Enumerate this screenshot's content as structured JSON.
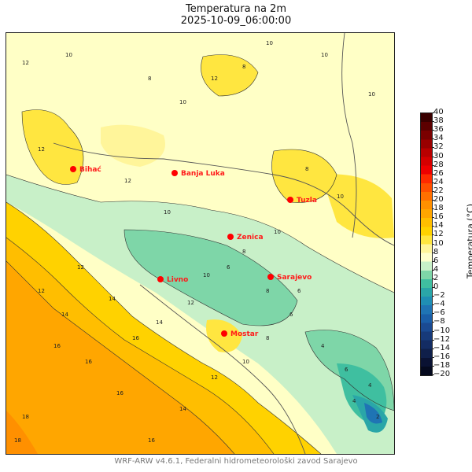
{
  "title": {
    "line1": "Temperatura na 2m",
    "line2": "2025-10-09_06:00:00"
  },
  "colorbar": {
    "label": "Temperatura (°C)",
    "ticks": [
      "40",
      "38",
      "36",
      "34",
      "32",
      "30",
      "28",
      "26",
      "24",
      "22",
      "20",
      "18",
      "16",
      "14",
      "12",
      "10",
      "8",
      "6",
      "4",
      "2",
      "0",
      "−2",
      "−4",
      "−6",
      "−8",
      "−10",
      "−12",
      "−14",
      "−16",
      "−18",
      "−20"
    ],
    "colors": [
      "#3a0000",
      "#5c0000",
      "#7a0000",
      "#990000",
      "#b80000",
      "#d40000",
      "#ee0000",
      "#ff2a00",
      "#ff5000",
      "#ff7000",
      "#ff9000",
      "#ffa600",
      "#ffbe00",
      "#ffd200",
      "#ffe640",
      "#fff59a",
      "#ffffcc",
      "#c8f0c8",
      "#7ed6a8",
      "#3fbfa0",
      "#2aa6a8",
      "#1f8fb4",
      "#1f74b4",
      "#1a5ea8",
      "#1a4a92",
      "#173a7a",
      "#132c63",
      "#0f1f4a",
      "#0a1233",
      "#050a1f"
    ]
  },
  "cities": [
    {
      "name": "Bihać"
    },
    {
      "name": "Banja Luka"
    },
    {
      "name": "Tuzla"
    },
    {
      "name": "Zenica"
    },
    {
      "name": "Sarajevo"
    },
    {
      "name": "Livno"
    },
    {
      "name": "Mostar"
    }
  ],
  "contour_labels": [
    "12",
    "10",
    "8",
    "10",
    "8",
    "10",
    "12",
    "10",
    "12",
    "10",
    "12",
    "10",
    "8",
    "10",
    "6",
    "8",
    "6",
    "4",
    "6",
    "4",
    "12",
    "14",
    "16",
    "16",
    "18",
    "16",
    "14",
    "12",
    "10",
    "8",
    "6",
    "4",
    "2",
    "16",
    "14",
    "12",
    "10",
    "8",
    "10",
    "12",
    "14",
    "16",
    "18"
  ],
  "footer": "WRF-ARW v4.6.1, Federalni hidrometeorološki zavod Sarajevo"
}
